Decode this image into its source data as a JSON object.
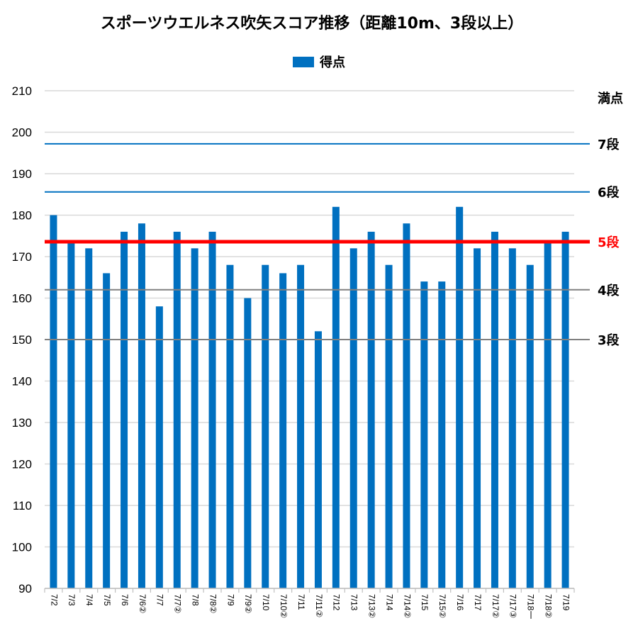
{
  "chart_data": {
    "type": "bar",
    "title": "スポーツウエルネス吹矢スコア推移（距離10m、3段以上）",
    "legend": {
      "position": "top",
      "entries": [
        "得点"
      ]
    },
    "ylim": [
      90,
      210
    ],
    "yticks": [
      90,
      100,
      110,
      120,
      130,
      140,
      150,
      160,
      170,
      180,
      190,
      200,
      210
    ],
    "grid": true,
    "categories": [
      "7/2",
      "7/3",
      "7/4",
      "7/5",
      "7/6",
      "7/6②",
      "7/7",
      "7/7②",
      "7/8",
      "7/8②",
      "7/9",
      "7/9②",
      "7/10",
      "7/10②",
      "7/11",
      "7/11②",
      "7/12",
      "7/13",
      "7/13②",
      "7/14",
      "7/14②",
      "7/15",
      "7/15②",
      "7/16",
      "7/17",
      "7/17②",
      "7/17③",
      "7/18一",
      "7/18②",
      "7/19"
    ],
    "series": [
      {
        "name": "得点",
        "color": "#0070c0",
        "values": [
          180,
          174,
          172,
          166,
          176,
          178,
          158,
          176,
          172,
          176,
          168,
          160,
          168,
          166,
          168,
          152,
          182,
          172,
          176,
          168,
          178,
          164,
          164,
          182,
          172,
          176,
          172,
          168,
          174,
          176
        ]
      }
    ],
    "reference_lines": [
      {
        "label": "満点",
        "value": 210,
        "color": "#d9d9d9",
        "label_color": "#000000"
      },
      {
        "label": "7段",
        "value": 197.2,
        "color": "#0070c0",
        "label_color": "#000000"
      },
      {
        "label": "6段",
        "value": 185.6,
        "color": "#0070c0",
        "label_color": "#000000"
      },
      {
        "label": "5段",
        "value": 173.6,
        "color": "#ff0000",
        "label_color": "#ff0000"
      },
      {
        "label": "4段",
        "value": 162,
        "color": "#808080",
        "label_color": "#000000"
      },
      {
        "label": "3段",
        "value": 150,
        "color": "#808080",
        "label_color": "#000000"
      }
    ]
  }
}
